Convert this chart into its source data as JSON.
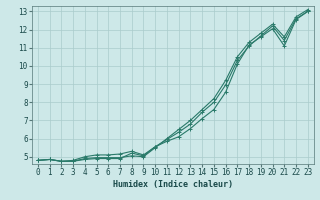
{
  "xlabel": "Humidex (Indice chaleur)",
  "bg_color": "#cde8e8",
  "grid_color": "#aacccc",
  "line_color": "#2a7a6a",
  "x_data": [
    0,
    1,
    2,
    3,
    4,
    5,
    6,
    7,
    8,
    9,
    10,
    11,
    12,
    13,
    14,
    15,
    16,
    17,
    18,
    19,
    20,
    21,
    22,
    23
  ],
  "y_line1": [
    4.8,
    4.85,
    4.75,
    4.75,
    4.9,
    4.95,
    4.95,
    4.95,
    5.05,
    5.0,
    5.5,
    6.0,
    6.5,
    7.0,
    7.6,
    8.2,
    9.2,
    10.5,
    11.3,
    11.8,
    12.3,
    11.6,
    12.7,
    13.1
  ],
  "y_line2": [
    4.8,
    4.85,
    4.75,
    4.8,
    5.0,
    5.1,
    5.1,
    5.15,
    5.3,
    5.1,
    5.55,
    5.95,
    6.35,
    6.8,
    7.45,
    8.0,
    8.95,
    10.3,
    11.1,
    11.65,
    12.2,
    11.4,
    12.6,
    13.0
  ],
  "y_line3": [
    4.8,
    4.85,
    4.75,
    4.75,
    4.85,
    4.9,
    4.9,
    4.9,
    5.2,
    5.05,
    5.55,
    5.85,
    6.1,
    6.55,
    7.1,
    7.6,
    8.55,
    10.1,
    11.15,
    11.6,
    12.05,
    11.1,
    12.55,
    13.0
  ],
  "ylim": [
    4.6,
    13.3
  ],
  "xlim": [
    -0.5,
    23.5
  ],
  "yticks": [
    5,
    6,
    7,
    8,
    9,
    10,
    11,
    12,
    13
  ],
  "xticks": [
    0,
    1,
    2,
    3,
    4,
    5,
    6,
    7,
    8,
    9,
    10,
    11,
    12,
    13,
    14,
    15,
    16,
    17,
    18,
    19,
    20,
    21,
    22,
    23
  ],
  "tick_fontsize": 5.5,
  "xlabel_fontsize": 6.0
}
